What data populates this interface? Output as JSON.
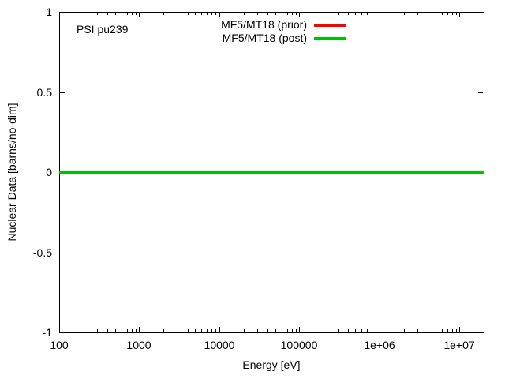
{
  "colors": {
    "background": "#ffffff",
    "frame": "#000000",
    "text": "#000000",
    "prior_red": "#ff0000",
    "post_green": "#00c000"
  },
  "plot_label": "PSI pu239",
  "chart_data": {
    "type": "line",
    "title": "",
    "xlabel": "Energy [eV]",
    "ylabel": "Nuclear Data [barns/no-dim]",
    "x_scale": "log",
    "y_scale": "linear",
    "xlim": [
      100,
      20000000
    ],
    "ylim": [
      -1,
      1
    ],
    "grid": false,
    "legend_position": "top-right-inside",
    "x_ticks": [
      {
        "value": 100,
        "label": "100"
      },
      {
        "value": 1000,
        "label": "1000"
      },
      {
        "value": 10000,
        "label": "10000"
      },
      {
        "value": 100000,
        "label": "100000"
      },
      {
        "value": 1000000,
        "label": "1e+06"
      },
      {
        "value": 10000000,
        "label": "1e+07"
      }
    ],
    "y_ticks": [
      {
        "value": 1,
        "label": "1"
      },
      {
        "value": 0.5,
        "label": "0.5"
      },
      {
        "value": 0,
        "label": "0"
      },
      {
        "value": -0.5,
        "label": "-0.5"
      },
      {
        "value": -1,
        "label": "-1"
      }
    ],
    "series": [
      {
        "name": "MF5/MT18 (prior)",
        "color": "#ff0000",
        "y_value": 0,
        "x_range": [
          100,
          20000000
        ]
      },
      {
        "name": "MF5/MT18 (post)",
        "color": "#00c000",
        "y_value": 0,
        "x_range": [
          100,
          20000000
        ]
      }
    ]
  }
}
